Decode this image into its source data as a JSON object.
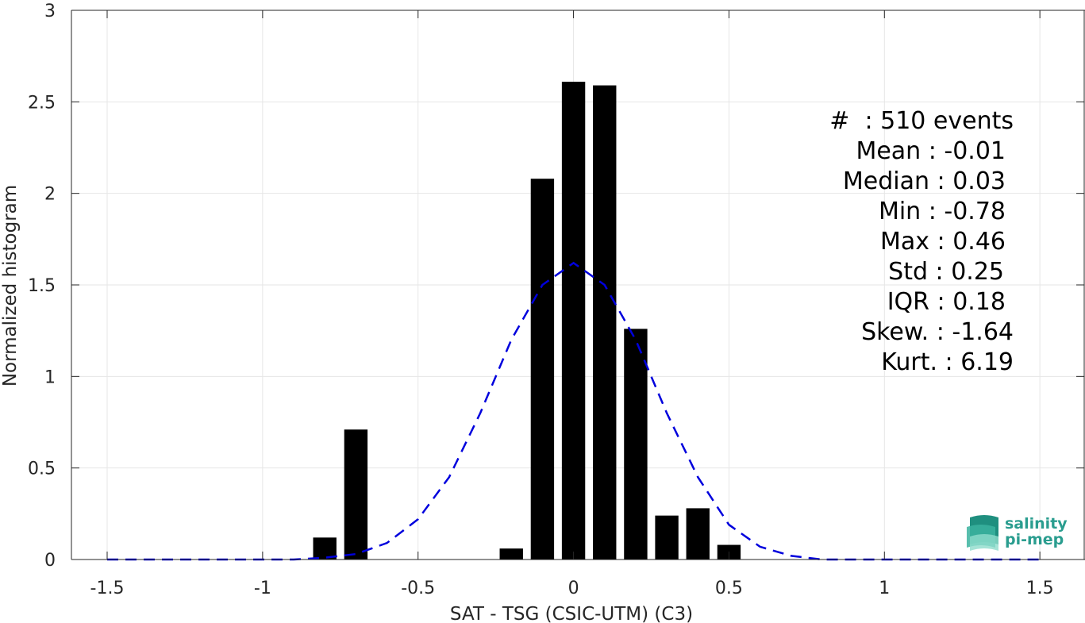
{
  "chart_data": {
    "type": "bar",
    "xlabel": "SAT - TSG (CSIC-UTM) (C3)",
    "ylabel": "Normalized histogram",
    "xlim": [
      -1.5,
      1.5
    ],
    "ylim": [
      0,
      3
    ],
    "xticks": [
      "-1.5",
      "-1",
      "-0.5",
      "0",
      "0.5",
      "1",
      "1.5"
    ],
    "yticks": [
      "0",
      "0.5",
      "1",
      "1.5",
      "2",
      "2.5",
      "3"
    ],
    "grid": true,
    "bins": [
      {
        "x": -0.8,
        "value": 0.12
      },
      {
        "x": -0.7,
        "value": 0.71
      },
      {
        "x": -0.2,
        "value": 0.06
      },
      {
        "x": -0.1,
        "value": 2.08
      },
      {
        "x": 0.0,
        "value": 2.61
      },
      {
        "x": 0.1,
        "value": 2.59
      },
      {
        "x": 0.2,
        "value": 1.26
      },
      {
        "x": 0.3,
        "value": 0.24
      },
      {
        "x": 0.4,
        "value": 0.28
      },
      {
        "x": 0.5,
        "value": 0.08
      }
    ],
    "bar_color": "#000000",
    "fit": {
      "style": "dashed",
      "color": "#0000dd",
      "x": [
        -1.5,
        -1.2,
        -1.0,
        -0.9,
        -0.8,
        -0.7,
        -0.6,
        -0.5,
        -0.4,
        -0.3,
        -0.2,
        -0.1,
        0.0,
        0.1,
        0.2,
        0.3,
        0.4,
        0.5,
        0.6,
        0.7,
        0.8,
        0.9,
        1.0,
        1.2,
        1.5
      ],
      "y": [
        0.0,
        0.0,
        0.0,
        0.0,
        0.01,
        0.03,
        0.09,
        0.22,
        0.45,
        0.8,
        1.2,
        1.5,
        1.62,
        1.5,
        1.2,
        0.8,
        0.45,
        0.19,
        0.07,
        0.02,
        0.0,
        0.0,
        0.0,
        0.0,
        0.0
      ]
    }
  },
  "stats": [
    "#  : 510 events",
    "Mean : -0.01",
    "Median : 0.03",
    "Min : -0.78",
    "Max : 0.46",
    "Std : 0.25",
    "IQR : 0.18",
    "Skew. : -1.64",
    "Kurt. : 6.19"
  ],
  "logo": {
    "line1": "salinity",
    "line2": "pi-mep"
  },
  "colors": {
    "axis": "#262626",
    "grid": "#e6e6e6",
    "logo": "#2a9d8f"
  }
}
